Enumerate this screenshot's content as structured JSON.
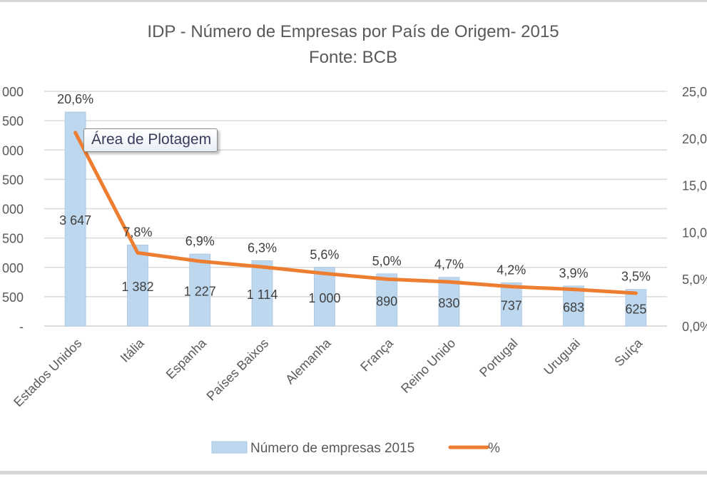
{
  "chart_data": {
    "type": "bar+line",
    "title": "IDP - Número de Empresas por País de Origem- 2015",
    "subtitle": "Fonte: BCB",
    "categories": [
      "Estados Unidos",
      "Itália",
      "Espanha",
      "Países Baixos",
      "Alemanha",
      "França",
      "Reino Unido",
      "Portugal",
      "Uruguai",
      "Suíça"
    ],
    "series": [
      {
        "name": "Número de empresas 2015",
        "type": "bar",
        "axis": "left",
        "color": "#bdd7ee",
        "values": [
          3647,
          1382,
          1227,
          1114,
          1000,
          890,
          830,
          737,
          683,
          625
        ],
        "labels": [
          "3 647",
          "1 382",
          "1 227",
          "1 114",
          "1 000",
          "890",
          "830",
          "737",
          "683",
          "625"
        ]
      },
      {
        "name": "%",
        "type": "line",
        "axis": "right",
        "color": "#ed7d31",
        "values": [
          20.6,
          7.8,
          6.9,
          6.3,
          5.6,
          5.0,
          4.7,
          4.2,
          3.9,
          3.5
        ],
        "labels": [
          "20,6%",
          "7,8%",
          "6,9%",
          "6,3%",
          "5,6%",
          "5,0%",
          "4,7%",
          "4,2%",
          "3,9%",
          "3,5%"
        ]
      }
    ],
    "y_left": {
      "ylim": [
        0,
        4000
      ],
      "ticks": [
        0,
        500,
        1000,
        1500,
        2000,
        2500,
        3000,
        3500,
        4000
      ],
      "tick_labels": [
        "-",
        "500",
        "000",
        "500",
        "000",
        "500",
        "000",
        "500",
        "000"
      ]
    },
    "y_right": {
      "ylim": [
        0,
        25
      ],
      "ticks": [
        0,
        5,
        10,
        15,
        20,
        25
      ],
      "tick_labels": [
        "0,0%",
        "5,0%",
        "10,0",
        "15,0",
        "20,0",
        "25,0"
      ]
    },
    "grid": true,
    "legend": {
      "position": "bottom",
      "entries": [
        "Número de empresas 2015",
        "%"
      ]
    }
  },
  "tooltip": {
    "text": "Área de Plotagem"
  }
}
